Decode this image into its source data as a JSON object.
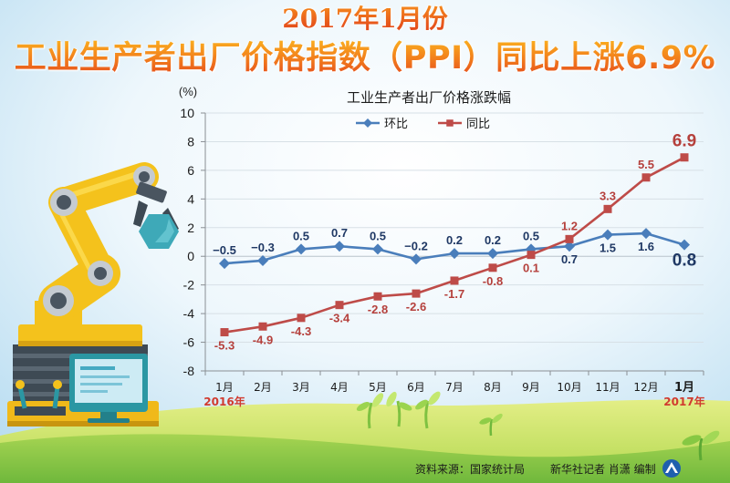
{
  "header": {
    "title_line1": "2017年1月份",
    "title_line2": "工业生产者出厂价格指数（PPI）同比上涨6.9%"
  },
  "chart_data": {
    "type": "line",
    "title": "工业生产者出厂价格涨跌幅",
    "ylabel": "(%)",
    "categories": [
      "1月",
      "2月",
      "3月",
      "4月",
      "5月",
      "6月",
      "7月",
      "8月",
      "9月",
      "10月",
      "11月",
      "12月",
      "1月"
    ],
    "year_labels": [
      {
        "index": 0,
        "text": "2016年"
      },
      {
        "index": 12,
        "text": "2017年"
      }
    ],
    "ylim": [
      -8,
      10
    ],
    "yticks": [
      10,
      8,
      6,
      4,
      2,
      0,
      -2,
      -4,
      -6,
      -8
    ],
    "grid": true,
    "legend_position": "top-center",
    "series": [
      {
        "name": "环比",
        "color": "#4a7ebb",
        "label_color": "#1f3864",
        "marker": "diamond",
        "values": [
          -0.5,
          -0.3,
          0.5,
          0.7,
          0.5,
          -0.2,
          0.2,
          0.2,
          0.5,
          0.7,
          1.5,
          1.6,
          0.8
        ],
        "labels": [
          "−0.5",
          "−0.3",
          "0.5",
          "0.7",
          "0.5",
          "−0.2",
          "0.2",
          "0.2",
          "0.5",
          "0.7",
          "1.5",
          "1.6",
          "0.8"
        ]
      },
      {
        "name": "同比",
        "color": "#be4b48",
        "label_color": "#b5403c",
        "marker": "square",
        "values": [
          -5.3,
          -4.9,
          -4.3,
          -3.4,
          -2.8,
          -2.6,
          -1.7,
          -0.8,
          0.1,
          1.2,
          3.3,
          5.5,
          6.9
        ],
        "labels": [
          "-5.3",
          "-4.9",
          "-4.3",
          "-3.4",
          "-2.8",
          "-2.6",
          "-1.7",
          "-0.8",
          "0.1",
          "1.2",
          "3.3",
          "5.5",
          "6.9"
        ]
      }
    ]
  },
  "footer": {
    "source": "资料来源：国家统计局",
    "credit": "新华社记者 肖潇 编制"
  },
  "colors": {
    "title_top": "#f7911c",
    "title_bottom": "#e0401a",
    "year_label": "#d13b2f",
    "sky": "#b9ddf1",
    "hill_light": "#e3ee86",
    "hill_dark": "#6fb83c",
    "robot_yellow": "#f4c21c",
    "logo_blue": "#1f5fae"
  },
  "icons": {
    "illustration": "robot-arm-icon",
    "computer": "monitor-icon",
    "controls": "lever-icon",
    "plants": "sprout-icon",
    "logo": "xinhua-logo-icon"
  }
}
